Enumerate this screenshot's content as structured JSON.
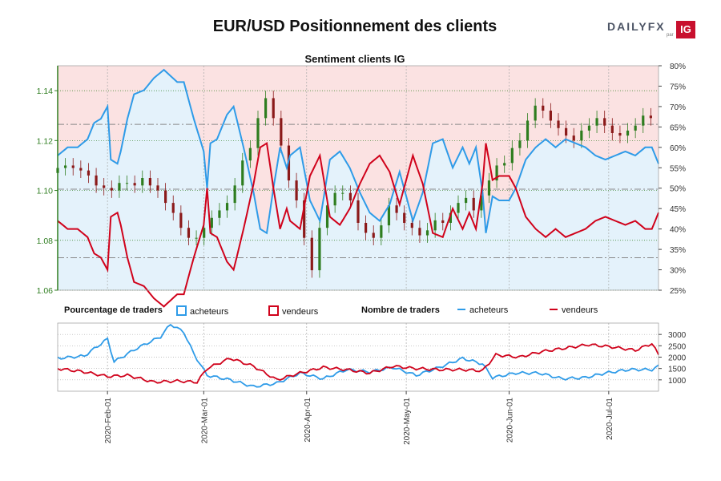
{
  "header": {
    "title": "EUR/USD Positionnement des clients",
    "logo_text": "DAILYFX",
    "logo_par": "par",
    "logo_ig": "IG"
  },
  "colors": {
    "buyers": "#2e9be8",
    "sellers": "#d0021b",
    "buyers_fill": "#e4f2fb",
    "sellers_fill": "#fbe2e2",
    "candle_up": "#2e7d1f",
    "candle_down": "#8b1a1a",
    "axis_green": "#2e7d1f"
  },
  "legend": {
    "pct_title": "Pourcentage de traders",
    "pct_buyers": "acheteurs",
    "pct_sellers": "vendeurs",
    "cnt_title": "Nombre de traders",
    "cnt_buyers": "acheteurs",
    "cnt_sellers": "vendeurs"
  },
  "chart_data": [
    {
      "type": "candlestick+area",
      "title": "Sentiment clients IG",
      "y_left": {
        "ylim": [
          1.06,
          1.15
        ],
        "ticks": [
          "1.06",
          "1.08",
          "1.10",
          "1.12",
          "1.14"
        ]
      },
      "y_right": {
        "ylim": [
          25,
          80
        ],
        "ticks": [
          "25%",
          "30%",
          "35%",
          "40%",
          "45%",
          "50%",
          "55%",
          "60%",
          "65%",
          "70%",
          "75%",
          "80%"
        ]
      },
      "reference_lines": [
        1.1265,
        1.1005,
        1.073
      ],
      "x_ticks": [
        "2020-Feb-01",
        "2020-Mar-01",
        "2020-Apr-01",
        "2020-May-01",
        "2020-Jun-01",
        "2020-Jul-01"
      ],
      "x_range": [
        "2020-Jan-17",
        "2020-Jul-16"
      ],
      "buyers_pct_anchors": [
        [
          "2020-Jan-17",
          58
        ],
        [
          "2020-Jan-20",
          60
        ],
        [
          "2020-Jan-23",
          60
        ],
        [
          "2020-Jan-26",
          62
        ],
        [
          "2020-Jan-28",
          66
        ],
        [
          "2020-Jan-30",
          67
        ],
        [
          "2020-Feb-01",
          70
        ],
        [
          "2020-Feb-02",
          57
        ],
        [
          "2020-Feb-04",
          56
        ],
        [
          "2020-Feb-05",
          59
        ],
        [
          "2020-Feb-07",
          67
        ],
        [
          "2020-Feb-09",
          73
        ],
        [
          "2020-Feb-12",
          74
        ],
        [
          "2020-Feb-15",
          77
        ],
        [
          "2020-Feb-18",
          79
        ],
        [
          "2020-Feb-22",
          76
        ],
        [
          "2020-Feb-24",
          76
        ],
        [
          "2020-Feb-27",
          67
        ],
        [
          "2020-Mar-01",
          59
        ],
        [
          "2020-Mar-02",
          50
        ],
        [
          "2020-Mar-03",
          61
        ],
        [
          "2020-Mar-05",
          62
        ],
        [
          "2020-Mar-08",
          68
        ],
        [
          "2020-Mar-10",
          70
        ],
        [
          "2020-Mar-13",
          60
        ],
        [
          "2020-Mar-16",
          49
        ],
        [
          "2020-Mar-18",
          40
        ],
        [
          "2020-Mar-20",
          39
        ],
        [
          "2020-Mar-22",
          50
        ],
        [
          "2020-Mar-24",
          60
        ],
        [
          "2020-Mar-26",
          55
        ],
        [
          "2020-Mar-27",
          58
        ],
        [
          "2020-Mar-30",
          60
        ],
        [
          "2020-Apr-02",
          47
        ],
        [
          "2020-Apr-05",
          42
        ],
        [
          "2020-Apr-08",
          57
        ],
        [
          "2020-Apr-11",
          59
        ],
        [
          "2020-Apr-14",
          55
        ],
        [
          "2020-Apr-17",
          49
        ],
        [
          "2020-Apr-20",
          44
        ],
        [
          "2020-Apr-23",
          42
        ],
        [
          "2020-Apr-26",
          46
        ],
        [
          "2020-Apr-29",
          54
        ],
        [
          "2020-May-01",
          48
        ],
        [
          "2020-May-03",
          42
        ],
        [
          "2020-May-06",
          49
        ],
        [
          "2020-May-09",
          61
        ],
        [
          "2020-May-12",
          62
        ],
        [
          "2020-May-15",
          55
        ],
        [
          "2020-May-18",
          60
        ],
        [
          "2020-May-20",
          56
        ],
        [
          "2020-May-22",
          60
        ],
        [
          "2020-May-24",
          49
        ],
        [
          "2020-May-25",
          39
        ],
        [
          "2020-May-27",
          48
        ],
        [
          "2020-May-29",
          47
        ],
        [
          "2020-Jun-01",
          47
        ],
        [
          "2020-Jun-03",
          50
        ],
        [
          "2020-Jun-06",
          57
        ],
        [
          "2020-Jun-09",
          60
        ],
        [
          "2020-Jun-12",
          62
        ],
        [
          "2020-Jun-15",
          60
        ],
        [
          "2020-Jun-18",
          62
        ],
        [
          "2020-Jun-21",
          61
        ],
        [
          "2020-Jun-24",
          60
        ],
        [
          "2020-Jun-27",
          58
        ],
        [
          "2020-Jun-30",
          57
        ],
        [
          "2020-Jul-03",
          58
        ],
        [
          "2020-Jul-06",
          59
        ],
        [
          "2020-Jul-09",
          58
        ],
        [
          "2020-Jul-12",
          60
        ],
        [
          "2020-Jul-14",
          60
        ],
        [
          "2020-Jul-15",
          58
        ],
        [
          "2020-Jul-16",
          56
        ]
      ],
      "candles": {
        "start": "2020-Jan-17",
        "closes": [
          1.109,
          1.11,
          1.109,
          1.108,
          1.106,
          1.102,
          1.101,
          1.1,
          1.103,
          1.103,
          1.102,
          1.105,
          1.102,
          1.1,
          1.095,
          1.091,
          1.085,
          1.081,
          1.081,
          1.085,
          1.089,
          1.092,
          1.095,
          1.102,
          1.112,
          1.117,
          1.129,
          1.137,
          1.129,
          1.118,
          1.104,
          1.096,
          1.081,
          1.068,
          1.085,
          1.094,
          1.099,
          1.099,
          1.096,
          1.087,
          1.083,
          1.081,
          1.086,
          1.094,
          1.091,
          1.087,
          1.085,
          1.082,
          1.084,
          1.088,
          1.087,
          1.091,
          1.095,
          1.097,
          1.092,
          1.098,
          1.104,
          1.11,
          1.111,
          1.117,
          1.12,
          1.128,
          1.134,
          1.132,
          1.128,
          1.125,
          1.122,
          1.12,
          1.124,
          1.126,
          1.129,
          1.126,
          1.123,
          1.122,
          1.124,
          1.126,
          1.13,
          1.129
        ],
        "range_high": 1.149,
        "range_low": 1.064
      },
      "buyers_pct_current": 56
    },
    {
      "type": "line",
      "title": "Nombre de traders",
      "y_ticks": [
        "1000",
        "1500",
        "2000",
        "2500",
        "3000"
      ],
      "ylim": [
        500,
        3500
      ],
      "series": [
        {
          "name": "acheteurs",
          "anchors": [
            [
              "2020-Jan-17",
              1950
            ],
            [
              "2020-Jan-25",
              2050
            ],
            [
              "2020-Feb-01",
              2800
            ],
            [
              "2020-Feb-03",
              1800
            ],
            [
              "2020-Feb-10",
              2400
            ],
            [
              "2020-Feb-17",
              2900
            ],
            [
              "2020-Feb-20",
              3450
            ],
            [
              "2020-Feb-24",
              3100
            ],
            [
              "2020-Feb-27",
              2150
            ],
            [
              "2020-Mar-02",
              1200
            ],
            [
              "2020-Mar-09",
              1000
            ],
            [
              "2020-Mar-16",
              700
            ],
            [
              "2020-Mar-23",
              850
            ],
            [
              "2020-Mar-30",
              1300
            ],
            [
              "2020-Apr-06",
              1050
            ],
            [
              "2020-Apr-13",
              1450
            ],
            [
              "2020-Apr-20",
              1350
            ],
            [
              "2020-Apr-27",
              1550
            ],
            [
              "2020-May-04",
              1200
            ],
            [
              "2020-May-11",
              1550
            ],
            [
              "2020-May-18",
              1950
            ],
            [
              "2020-May-24",
              1700
            ],
            [
              "2020-May-27",
              1100
            ],
            [
              "2020-Jun-03",
              1300
            ],
            [
              "2020-Jun-10",
              1300
            ],
            [
              "2020-Jun-17",
              1050
            ],
            [
              "2020-Jun-24",
              1100
            ],
            [
              "2020-Jun-30",
              1300
            ],
            [
              "2020-Jul-07",
              1450
            ],
            [
              "2020-Jul-14",
              1450
            ],
            [
              "2020-Jul-16",
              1600
            ]
          ]
        },
        {
          "name": "vendeurs",
          "anchors": [
            [
              "2020-Jan-17",
              1500
            ],
            [
              "2020-Jan-25",
              1350
            ],
            [
              "2020-Feb-01",
              1150
            ],
            [
              "2020-Feb-07",
              1200
            ],
            [
              "2020-Feb-15",
              900
            ],
            [
              "2020-Feb-22",
              950
            ],
            [
              "2020-Feb-28",
              900
            ],
            [
              "2020-Mar-02",
              1500
            ],
            [
              "2020-Mar-09",
              1950
            ],
            [
              "2020-Mar-16",
              1600
            ],
            [
              "2020-Mar-23",
              1000
            ],
            [
              "2020-Mar-30",
              1300
            ],
            [
              "2020-Apr-06",
              1550
            ],
            [
              "2020-Apr-13",
              1450
            ],
            [
              "2020-Apr-20",
              1300
            ],
            [
              "2020-Apr-27",
              1600
            ],
            [
              "2020-May-04",
              1500
            ],
            [
              "2020-May-11",
              1450
            ],
            [
              "2020-May-18",
              1450
            ],
            [
              "2020-May-24",
              1400
            ],
            [
              "2020-May-28",
              2100
            ],
            [
              "2020-Jun-04",
              2000
            ],
            [
              "2020-Jun-11",
              2250
            ],
            [
              "2020-Jun-18",
              2400
            ],
            [
              "2020-Jun-25",
              2550
            ],
            [
              "2020-Jul-02",
              2450
            ],
            [
              "2020-Jul-09",
              2300
            ],
            [
              "2020-Jul-14",
              2600
            ],
            [
              "2020-Jul-16",
              2100
            ]
          ]
        }
      ]
    }
  ]
}
